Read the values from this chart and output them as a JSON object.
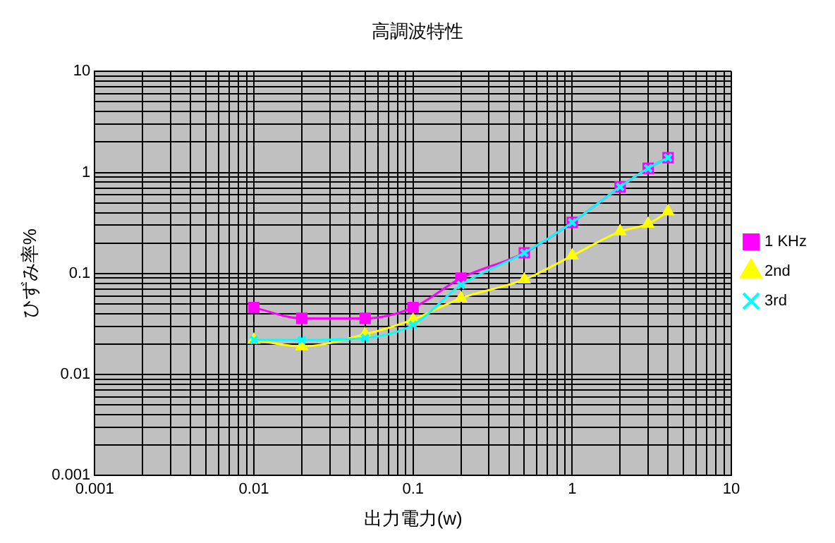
{
  "chart_data": {
    "type": "line",
    "title": "高調波特性",
    "xlabel": "出力電力(w)",
    "ylabel": "ひずみ率%",
    "log": "xy",
    "grid": true,
    "legend": "right",
    "line_style": "solid",
    "x": [
      0.01,
      0.02,
      0.05,
      0.1,
      0.2,
      0.5,
      1,
      2,
      3,
      4
    ],
    "series": [
      {
        "name": "1 KHz",
        "color": "#ff00ff",
        "marker": "square",
        "values": [
          0.046,
          0.036,
          0.036,
          0.046,
          0.09,
          0.16,
          0.32,
          0.72,
          1.1,
          1.4
        ]
      },
      {
        "name": "2nd",
        "color": "#ffff00",
        "marker": "triangle",
        "values": [
          0.022,
          0.019,
          0.025,
          0.035,
          0.057,
          0.087,
          0.15,
          0.26,
          0.31,
          0.41
        ]
      },
      {
        "name": "3rd",
        "color": "#00ffff",
        "marker": "cross",
        "values": [
          0.022,
          0.022,
          0.023,
          0.031,
          0.077,
          0.16,
          0.32,
          0.72,
          1.1,
          1.4
        ]
      }
    ],
    "xlim": [
      0.001,
      10
    ],
    "ylim": [
      0.001,
      10
    ],
    "xticks": [
      0.001,
      {
        "value": 0.002,
        "label": null
      },
      {
        "value": 0.003,
        "label": null
      },
      {
        "value": 0.004,
        "label": null
      },
      {
        "value": 0.005,
        "label": null
      },
      {
        "value": 0.006,
        "label": null
      },
      {
        "value": 0.007,
        "label": null
      },
      {
        "value": 0.008,
        "label": null
      },
      {
        "value": 0.009,
        "label": null
      },
      0.01,
      {
        "value": 0.02,
        "label": null
      },
      {
        "value": 0.03,
        "label": null
      },
      {
        "value": 0.04,
        "label": null
      },
      {
        "value": 0.05,
        "label": null
      },
      {
        "value": 0.06,
        "label": null
      },
      {
        "value": 0.07,
        "label": null
      },
      {
        "value": 0.08,
        "label": null
      },
      {
        "value": 0.09,
        "label": null
      },
      0.1,
      {
        "value": 0.2,
        "label": null
      },
      {
        "value": 0.3,
        "label": null
      },
      {
        "value": 0.4,
        "label": null
      },
      {
        "value": 0.5,
        "label": null
      },
      {
        "value": 0.6,
        "label": null
      },
      {
        "value": 0.7,
        "label": null
      },
      {
        "value": 0.8,
        "label": null
      },
      {
        "value": 0.9,
        "label": null
      },
      1,
      {
        "value": 2,
        "label": null
      },
      {
        "value": 3,
        "label": null
      },
      {
        "value": 4,
        "label": null
      },
      {
        "value": 5,
        "label": null
      },
      {
        "value": 6,
        "label": null
      },
      {
        "value": 7,
        "label": null
      },
      {
        "value": 8,
        "label": null
      },
      {
        "value": 9,
        "label": null
      },
      10
    ],
    "yticks": [
      0.001,
      {
        "value": 0.002,
        "label": null
      },
      {
        "value": 0.003,
        "label": null
      },
      {
        "value": 0.004,
        "label": null
      },
      {
        "value": 0.005,
        "label": null
      },
      {
        "value": 0.006,
        "label": null
      },
      {
        "value": 0.007,
        "label": null
      },
      {
        "value": 0.008,
        "label": null
      },
      {
        "value": 0.009,
        "label": null
      },
      0.01,
      {
        "value": 0.02,
        "label": null
      },
      {
        "value": 0.03,
        "label": null
      },
      {
        "value": 0.04,
        "label": null
      },
      {
        "value": 0.05,
        "label": null
      },
      {
        "value": 0.06,
        "label": null
      },
      {
        "value": 0.07,
        "label": null
      },
      {
        "value": 0.08,
        "label": null
      },
      {
        "value": 0.09,
        "label": null
      },
      0.1,
      {
        "value": 0.2,
        "label": null
      },
      {
        "value": 0.3,
        "label": null
      },
      {
        "value": 0.4,
        "label": null
      },
      {
        "value": 0.5,
        "label": null
      },
      {
        "value": 0.6,
        "label": null
      },
      {
        "value": 0.7,
        "label": null
      },
      {
        "value": 0.8,
        "label": null
      },
      {
        "value": 0.9,
        "label": null
      },
      1,
      {
        "value": 2,
        "label": null
      },
      {
        "value": 3,
        "label": null
      },
      {
        "value": 4,
        "label": null
      },
      {
        "value": 5,
        "label": null
      },
      {
        "value": 6,
        "label": null
      },
      {
        "value": 7,
        "label": null
      },
      {
        "value": 8,
        "label": null
      },
      {
        "value": 9,
        "label": null
      },
      10
    ]
  }
}
